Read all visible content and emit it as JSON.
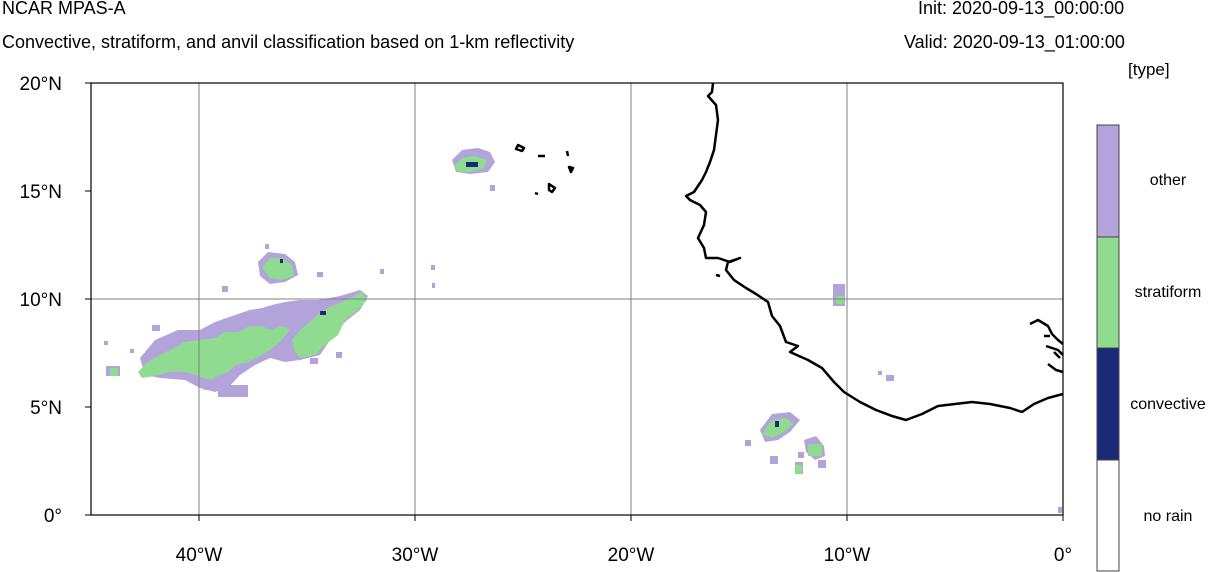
{
  "header": {
    "title": "NCAR MPAS-A",
    "subtitle": "Convective, stratiform, and anvil classification based on 1-km reflectivity",
    "init": "Init: 2020-09-13_00:00:00",
    "valid": "Valid: 2020-09-13_01:00:00",
    "units": "[type]"
  },
  "axes": {
    "lat_labels": [
      "20°N",
      "15°N",
      "10°N",
      "5°N",
      "0°"
    ],
    "lon_labels": [
      "40°W",
      "30°W",
      "20°W",
      "10°W",
      "0°"
    ],
    "lon_range": [
      -45,
      0
    ],
    "lat_range": [
      0,
      20
    ],
    "grid": true
  },
  "legend": {
    "items": [
      {
        "label": "other",
        "color": "#b3a3db"
      },
      {
        "label": "stratiform",
        "color": "#8fdb8f"
      },
      {
        "label": "convective",
        "color": "#1a2a78"
      },
      {
        "label": "no rain",
        "color": "#ffffff"
      }
    ]
  },
  "colors": {
    "other": "#b3a3db",
    "stratiform": "#8fdb8f",
    "convective": "#1a2a78",
    "coast": "#000000",
    "grid": "#808080"
  }
}
